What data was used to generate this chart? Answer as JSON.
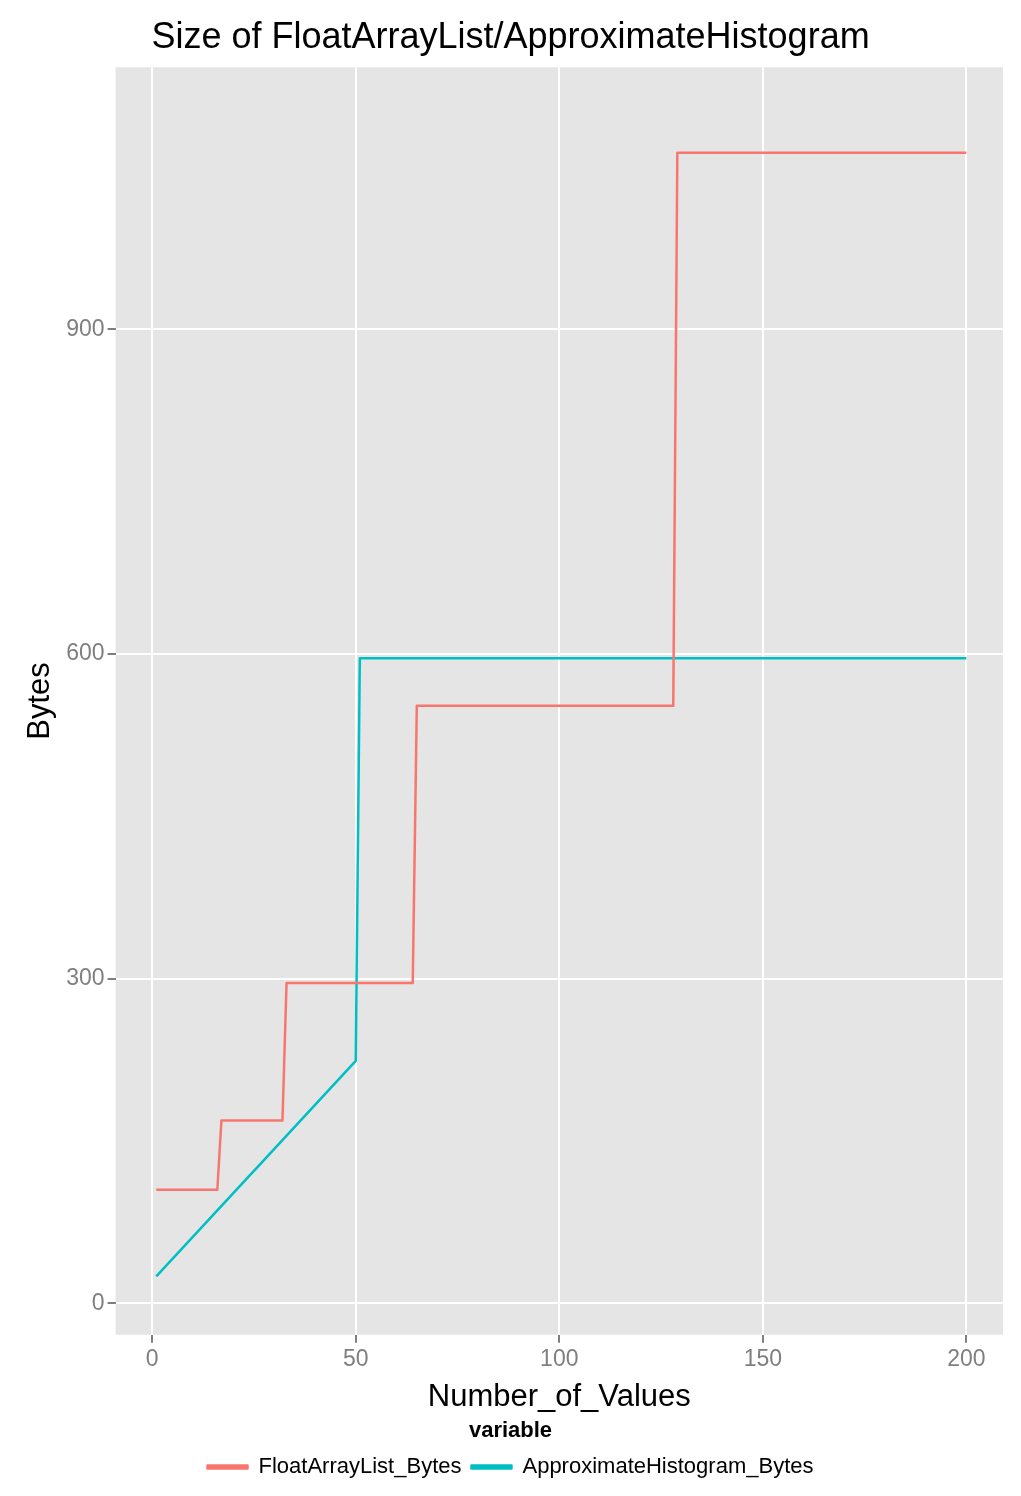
{
  "chart_data": {
    "type": "line",
    "title": "Size of FloatArrayList/ApproximateHistogram",
    "xlabel": "Number_of_Values",
    "ylabel": "Bytes",
    "legend_title": "variable",
    "legend": "bottom",
    "grid": true,
    "marker": "none",
    "line_style": "solid",
    "xlim": [
      -9,
      209
    ],
    "xticks": [
      0,
      50,
      100,
      150,
      200
    ],
    "ylim": [
      -29,
      1142
    ],
    "yticks": [
      0,
      300,
      600,
      900
    ],
    "series": [
      {
        "name": "FloatArrayList_Bytes",
        "color": "#f8766d",
        "x": [
          1,
          16,
          17,
          32,
          33,
          64,
          65,
          128,
          129,
          200
        ],
        "values": [
          105,
          105,
          169,
          169,
          296,
          296,
          552,
          552,
          1063,
          1063
        ]
      },
      {
        "name": "ApproximateHistogram_Bytes",
        "color": "#00bfc4",
        "x": [
          1,
          50,
          51,
          200
        ],
        "values": [
          25,
          224,
          596,
          596
        ]
      }
    ]
  }
}
